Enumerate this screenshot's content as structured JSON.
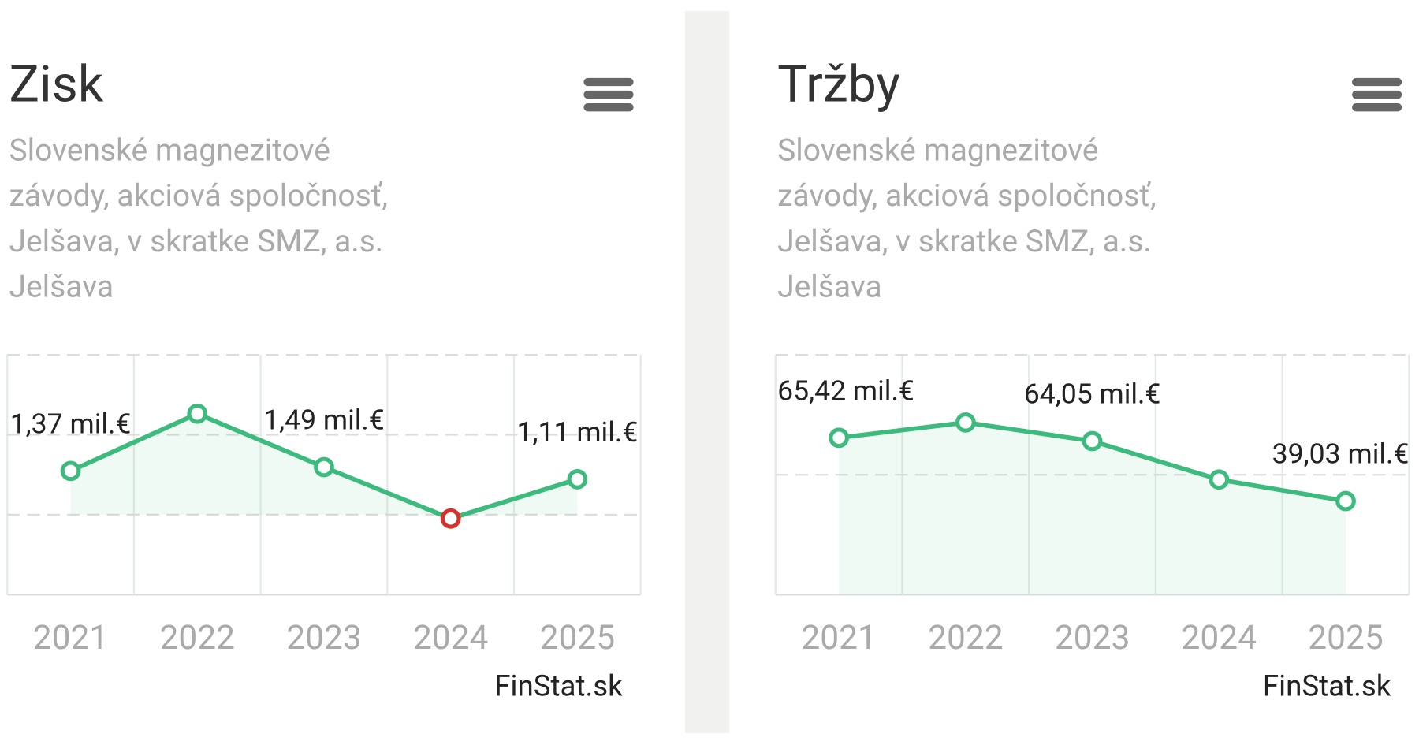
{
  "chart_data": [
    {
      "type": "line",
      "title": "Zisk",
      "subtitle": [
        "Slovenské magnezitové",
        "závody, akciová spoločnosť,",
        "Jelšava, v skratke SMZ, a.s.",
        "Jelšava"
      ],
      "categories": [
        "2021",
        "2022",
        "2023",
        "2024",
        "2025"
      ],
      "series": [
        {
          "color": "#3dba7e",
          "negative_color": "#d9302c",
          "values": [
            1.37,
            3.16,
            1.49,
            -0.12,
            1.11
          ],
          "value_labels": [
            "1,37 mil.€",
            null,
            "1,49 mil.€",
            null,
            "1,11 mil.€"
          ]
        }
      ],
      "ylim": [
        -2.5,
        5
      ],
      "ygrid": [
        -2.5,
        0,
        2.5,
        5
      ],
      "credit": "FinStat.sk"
    },
    {
      "type": "line",
      "title": "Tržby",
      "subtitle": [
        "Slovenské magnezitové",
        "závody, akciová spoločnosť,",
        "Jelšava, v skratke SMZ, a.s.",
        "Jelšava"
      ],
      "categories": [
        "2021",
        "2022",
        "2023",
        "2024",
        "2025"
      ],
      "series": [
        {
          "color": "#3dba7e",
          "negative_color": "#d9302c",
          "values": [
            65.42,
            71.8,
            64.05,
            48.0,
            39.03
          ],
          "value_labels": [
            "65,42 mil.€",
            null,
            "64,05 mil.€",
            null,
            "39,03 mil.€"
          ]
        }
      ],
      "ylim": [
        0,
        100
      ],
      "ygrid": [
        0,
        50,
        100
      ],
      "credit": "FinStat.sk"
    }
  ]
}
